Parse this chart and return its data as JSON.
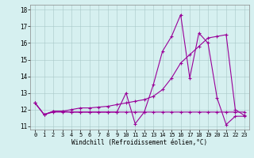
{
  "xlabel": "Windchill (Refroidissement éolien,°C)",
  "background_color": "#d6f0f0",
  "line_color": "#990099",
  "xlim": [
    -0.5,
    23.5
  ],
  "ylim": [
    10.8,
    18.3
  ],
  "yticks": [
    11,
    12,
    13,
    14,
    15,
    16,
    17,
    18
  ],
  "xticks": [
    0,
    1,
    2,
    3,
    4,
    5,
    6,
    7,
    8,
    9,
    10,
    11,
    12,
    13,
    14,
    15,
    16,
    17,
    18,
    19,
    20,
    21,
    22,
    23
  ],
  "series": [
    [
      12.4,
      11.7,
      11.9,
      11.9,
      11.85,
      11.85,
      11.85,
      11.85,
      11.85,
      11.85,
      13.0,
      11.15,
      11.85,
      13.5,
      15.5,
      16.4,
      17.7,
      13.9,
      16.6,
      16.0,
      12.7,
      11.1,
      11.6,
      11.6
    ],
    [
      12.4,
      11.7,
      11.85,
      11.85,
      11.85,
      11.85,
      11.85,
      11.85,
      11.85,
      11.85,
      11.85,
      11.85,
      11.85,
      11.85,
      11.85,
      11.85,
      11.85,
      11.85,
      11.85,
      11.85,
      11.85,
      11.85,
      11.85,
      11.85
    ],
    [
      12.4,
      11.7,
      11.9,
      11.9,
      12.0,
      12.1,
      12.1,
      12.15,
      12.2,
      12.3,
      12.4,
      12.5,
      12.6,
      12.8,
      13.2,
      13.9,
      14.8,
      15.3,
      15.8,
      16.3,
      16.4,
      16.5,
      12.0,
      11.65
    ]
  ]
}
